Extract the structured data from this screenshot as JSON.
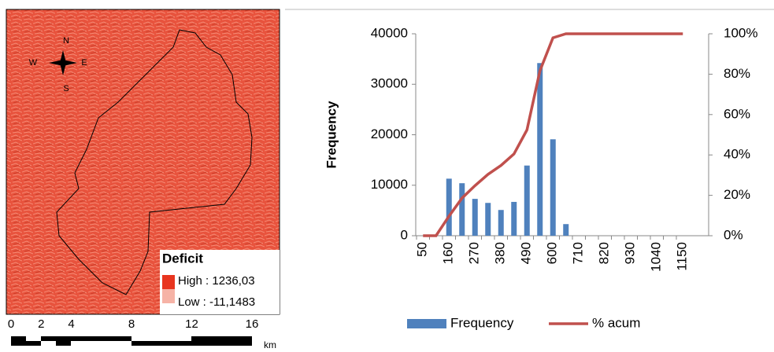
{
  "map": {
    "compass": {
      "n": "N",
      "s": "S",
      "e": "E",
      "w": "W"
    },
    "legend": {
      "title": "Deficit",
      "high": "High : 1236,03",
      "low": "Low : -11,1483"
    },
    "scale": {
      "labels": [
        0,
        2,
        4,
        8,
        12,
        16
      ],
      "unit": "km"
    }
  },
  "chart_data": {
    "type": "bar",
    "categories": [
      50,
      null,
      160,
      null,
      270,
      null,
      380,
      null,
      490,
      null,
      600,
      null,
      710,
      null,
      820,
      null,
      930,
      null,
      1040,
      null,
      1150
    ],
    "ylabel": "Frequency",
    "ylim": [
      0,
      40000
    ],
    "yticks": [
      0,
      10000,
      20000,
      30000,
      40000
    ],
    "y2lim": [
      0,
      100
    ],
    "y2ticks": [
      {
        "value": 0,
        "label": "0%"
      },
      {
        "value": 20,
        "label": "20%"
      },
      {
        "value": 40,
        "label": "40%"
      },
      {
        "value": 60,
        "label": "60%"
      },
      {
        "value": 80,
        "label": "80%"
      },
      {
        "value": 100,
        "label": "100%"
      }
    ],
    "series": [
      {
        "name": "Frequency",
        "type": "bar",
        "color": "#4f81bd",
        "values": [
          0,
          0,
          11300,
          10400,
          7300,
          6500,
          5100,
          6700,
          13900,
          34200,
          19100,
          2300,
          0,
          0,
          0,
          0,
          0,
          0,
          0,
          0,
          0
        ]
      },
      {
        "name": "% acum",
        "type": "line",
        "axis": "y2",
        "color": "#c0504d",
        "values": [
          0,
          0,
          9.7,
          18.6,
          24.8,
          30.4,
          34.8,
          40.5,
          52.4,
          81.7,
          98.0,
          100,
          100,
          100,
          100,
          100,
          100,
          100,
          100,
          100,
          100
        ]
      }
    ],
    "legend": "bottom"
  }
}
